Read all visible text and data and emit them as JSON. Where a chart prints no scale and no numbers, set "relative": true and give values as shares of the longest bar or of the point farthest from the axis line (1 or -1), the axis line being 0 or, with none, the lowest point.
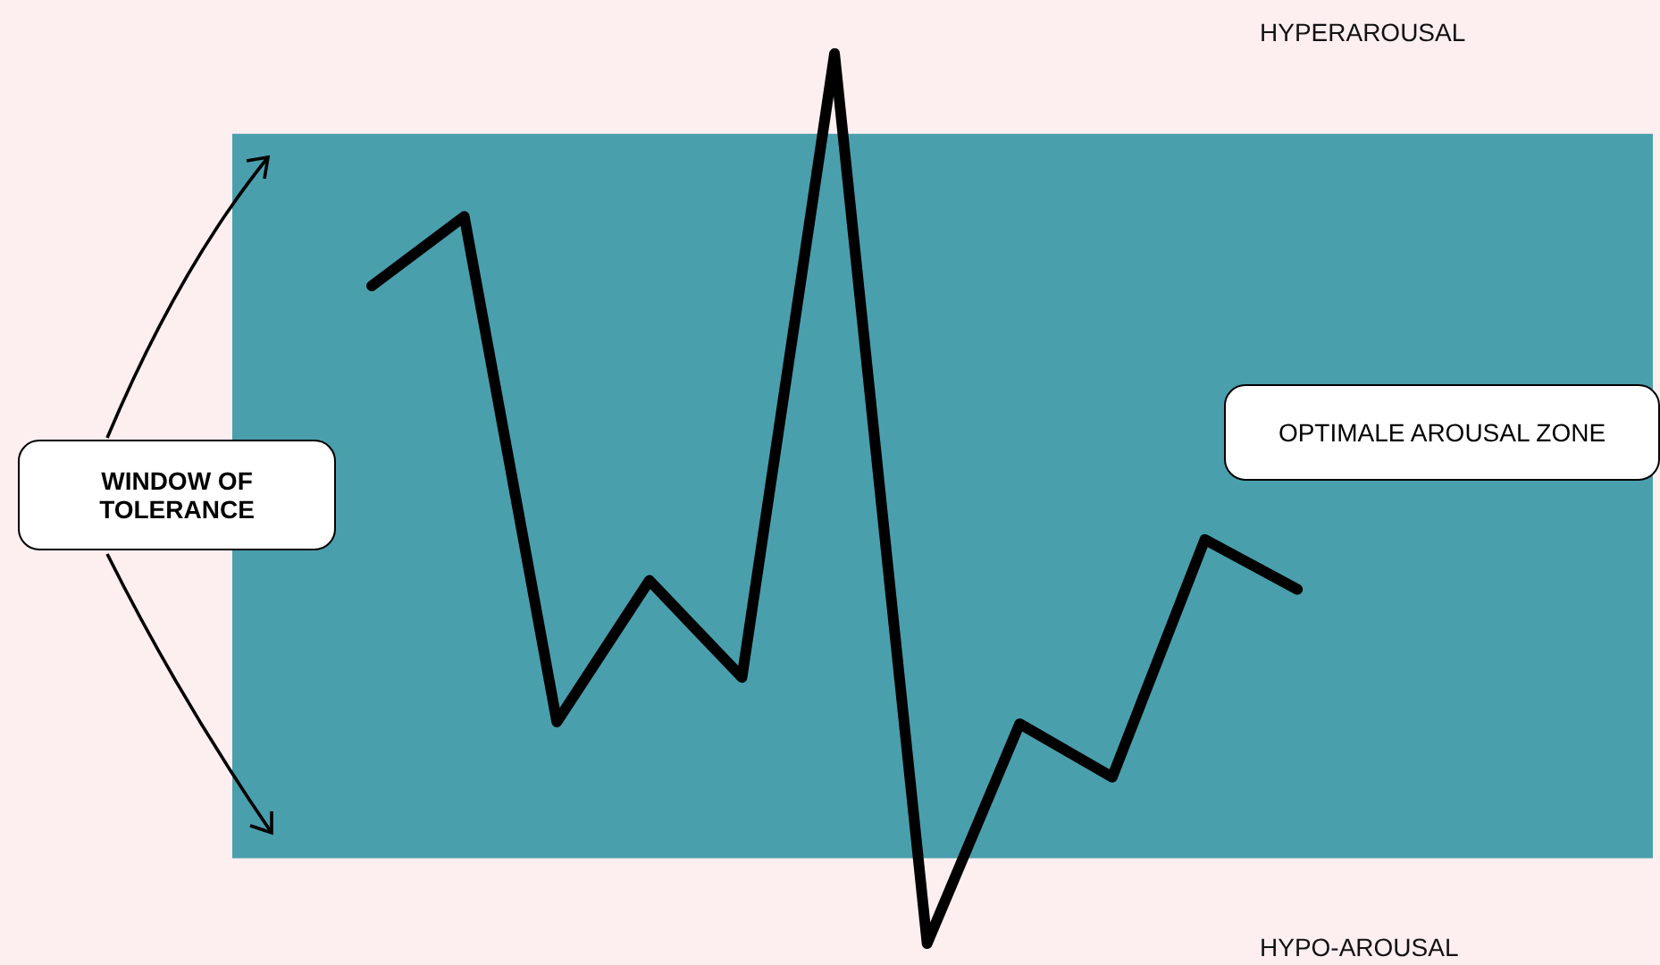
{
  "chart_data": {
    "type": "line",
    "relative": true,
    "categories": [
      null,
      null,
      null,
      null,
      null,
      null,
      null,
      null,
      null,
      null,
      null
    ],
    "series": [
      {
        "color": "#000000",
        "values": [
          0.739,
          0.817,
          0.249,
          0.408,
          0.299,
          1,
          0,
          0.247,
          0.187,
          0.454,
          0.398
        ]
      }
    ],
    "bands": [
      {
        "axis": "y",
        "from": 0.096,
        "to": 0.91,
        "label": "OPTIMALE AROUSAL ZONE",
        "color": "#4a9fad"
      }
    ],
    "annotations": [
      "HYPERAROUSAL",
      "HYPO-AROUSAL",
      "WINDOW OF TOLERANCE"
    ],
    "line_style": "solid",
    "marker": "none"
  }
}
